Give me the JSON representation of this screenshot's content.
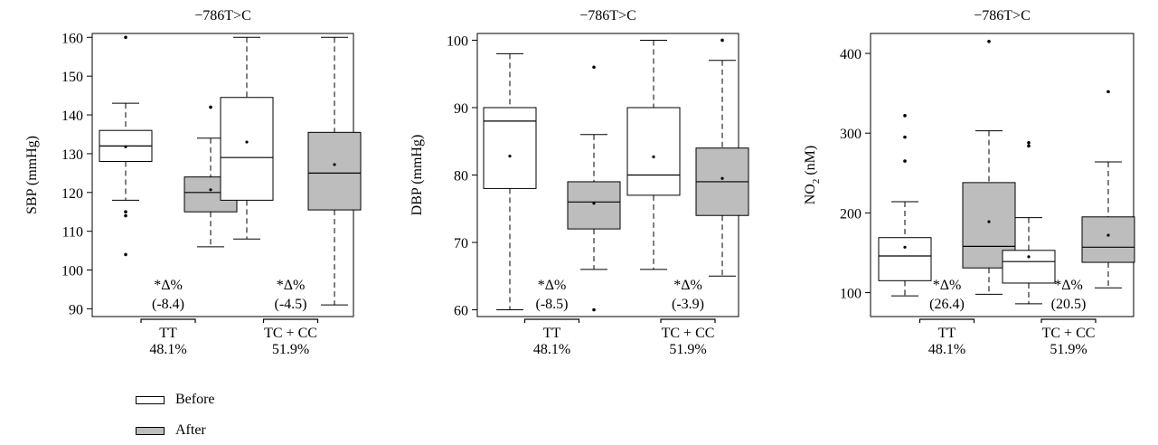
{
  "chart_data": [
    {
      "type": "boxplot",
      "title": "−786T>C",
      "ylabel": "SBP (mmHg)",
      "ylim": [
        88,
        161
      ],
      "yticks": [
        90,
        100,
        110,
        120,
        130,
        140,
        150,
        160
      ],
      "groups": [
        {
          "label": "TT",
          "pct": "48.1%",
          "delta_label": "*Δ%",
          "delta_value": "(-8.4)"
        },
        {
          "label": "TC + CC",
          "pct": "51.9%",
          "delta_label": "*Δ%",
          "delta_value": "(-4.5)"
        }
      ],
      "boxes": [
        {
          "group": 0,
          "series": "Before",
          "whisker_low": 118,
          "q1": 128,
          "median": 132,
          "q3": 136,
          "whisker_high": 143,
          "mean": 131.8,
          "outliers": [
            160,
            115,
            114,
            104
          ]
        },
        {
          "group": 0,
          "series": "After",
          "whisker_low": 106,
          "q1": 115,
          "median": 120,
          "q3": 124,
          "whisker_high": 134,
          "mean": 120.7,
          "outliers": [
            142
          ]
        },
        {
          "group": 1,
          "series": "Before",
          "whisker_low": 108,
          "q1": 118,
          "median": 129,
          "q3": 144.5,
          "whisker_high": 160,
          "mean": 133,
          "outliers": []
        },
        {
          "group": 1,
          "series": "After",
          "whisker_low": 91,
          "q1": 115.5,
          "median": 125,
          "q3": 135.5,
          "whisker_high": 160,
          "mean": 127.2,
          "outliers": []
        }
      ]
    },
    {
      "type": "boxplot",
      "title": "−786T>C",
      "ylabel": "DBP (mmHg)",
      "ylim": [
        59,
        101
      ],
      "yticks": [
        60,
        70,
        80,
        90,
        100
      ],
      "groups": [
        {
          "label": "TT",
          "pct": "48.1%",
          "delta_label": "*Δ%",
          "delta_value": "(-8.5)"
        },
        {
          "label": "TC + CC",
          "pct": "51.9%",
          "delta_label": "*Δ%",
          "delta_value": "(-3.9)"
        }
      ],
      "boxes": [
        {
          "group": 0,
          "series": "Before",
          "whisker_low": 60,
          "q1": 78,
          "median": 88,
          "q3": 90,
          "whisker_high": 98,
          "mean": 82.8,
          "outliers": []
        },
        {
          "group": 0,
          "series": "After",
          "whisker_low": 66,
          "q1": 72,
          "median": 76,
          "q3": 79,
          "whisker_high": 86,
          "mean": 75.8,
          "outliers": [
            96,
            60
          ]
        },
        {
          "group": 1,
          "series": "Before",
          "whisker_low": 66,
          "q1": 77,
          "median": 80,
          "q3": 90,
          "whisker_high": 100,
          "mean": 82.7,
          "outliers": []
        },
        {
          "group": 1,
          "series": "After",
          "whisker_low": 65,
          "q1": 74,
          "median": 79,
          "q3": 84,
          "whisker_high": 97,
          "mean": 79.5,
          "outliers": [
            100
          ]
        }
      ]
    },
    {
      "type": "boxplot",
      "title": "−786T>C",
      "ylabel_main": "NO",
      "ylabel_sub": "2",
      "ylabel_unit": " (nM)",
      "ylim": [
        70,
        425
      ],
      "yticks": [
        100,
        200,
        300,
        400
      ],
      "groups": [
        {
          "label": "TT",
          "pct": "48.1%",
          "delta_label": "*Δ%",
          "delta_value": "(26.4)"
        },
        {
          "label": "TC + CC",
          "pct": "51.9%",
          "delta_label": "*Δ%",
          "delta_value": "(20.5)"
        }
      ],
      "boxes": [
        {
          "group": 0,
          "series": "Before",
          "whisker_low": 96,
          "q1": 115,
          "median": 146,
          "q3": 169,
          "whisker_high": 214,
          "mean": 157,
          "outliers": [
            322,
            295,
            265
          ]
        },
        {
          "group": 0,
          "series": "After",
          "whisker_low": 98,
          "q1": 131,
          "median": 158,
          "q3": 238,
          "whisker_high": 303,
          "mean": 189,
          "outliers": [
            415
          ]
        },
        {
          "group": 1,
          "series": "Before",
          "whisker_low": 86,
          "q1": 112,
          "median": 139,
          "q3": 153,
          "whisker_high": 194,
          "mean": 145,
          "outliers": [
            288,
            284
          ]
        },
        {
          "group": 1,
          "series": "After",
          "whisker_low": 106,
          "q1": 138,
          "median": 157,
          "q3": 195,
          "whisker_high": 264,
          "mean": 172,
          "outliers": [
            352
          ]
        }
      ]
    }
  ],
  "legend": {
    "items": [
      {
        "label": "Before",
        "color": "#ffffff"
      },
      {
        "label": "After",
        "color": "#bdbdbd"
      }
    ]
  }
}
